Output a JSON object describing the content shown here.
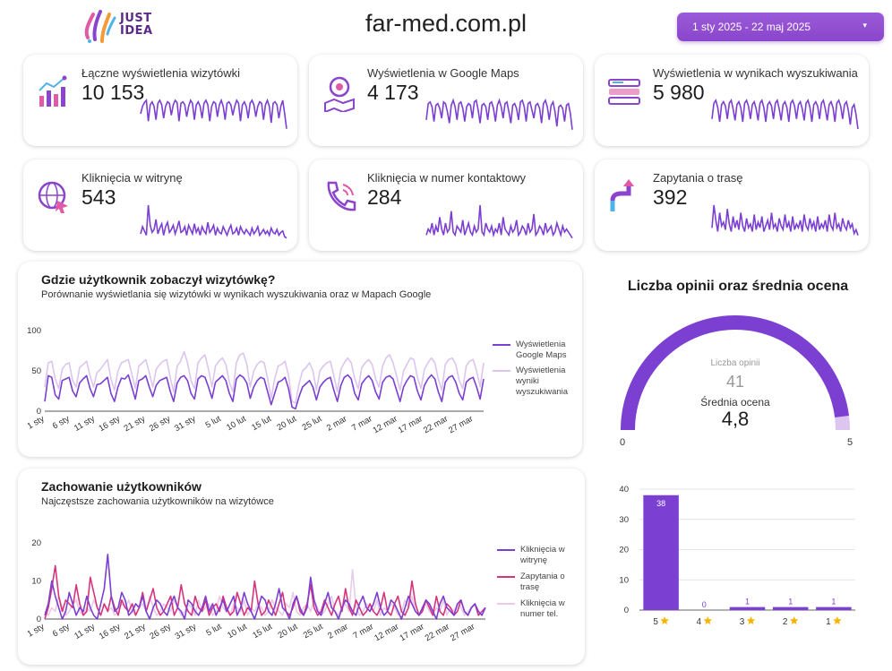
{
  "header": {
    "logo_text_line1": "JUST",
    "logo_text_line2": "IDEA",
    "site_title": "far-med.com.pl",
    "date_range": "1 sty 2025 - 22 maj 2025",
    "date_caret": "▾"
  },
  "kpis": [
    {
      "label": "Łączne wyświetlenia wizytówki",
      "value": "10 153",
      "icon": "bar-chart-icon"
    },
    {
      "label": "Wyświetlenia w Google Maps",
      "value": "4 173",
      "icon": "map-pin-icon"
    },
    {
      "label": "Wyświetlenia w wynikach wyszukiwania",
      "value": "5 980",
      "icon": "search-results-icon"
    },
    {
      "label": "Kliknięcia w witrynę",
      "value": "543",
      "icon": "globe-click-icon"
    },
    {
      "label": "Kliknięcia w numer kontaktowy",
      "value": "284",
      "icon": "phone-icon"
    },
    {
      "label": "Zapytania o trasę",
      "value": "392",
      "icon": "route-arrow-icon"
    }
  ],
  "colors": {
    "primary": "#7b3fd1",
    "light": "#dcc5ee",
    "pink": "#d6357c",
    "pale_pink": "#e7cbe9"
  },
  "chart_data": [
    {
      "type": "line",
      "title": "Gdzie użytkownik zobaczył wizytówkę?",
      "subtitle": "Porównanie wyświetlania się wizytówki w wynikach wyszukiwania oraz w Mapach Google",
      "x_ticks": [
        "1 sty",
        "6 sty",
        "11 sty",
        "16 sty",
        "21 sty",
        "26 sty",
        "31 sty",
        "5 lut",
        "10 lut",
        "15 lut",
        "20 lut",
        "25 lut",
        "2 mar",
        "7 mar",
        "12 mar",
        "17 mar",
        "22 mar",
        "27 mar"
      ],
      "y_ticks": [
        "0",
        "50",
        "100"
      ],
      "ylim": [
        0,
        100
      ],
      "series": [
        {
          "name": "Wyświetlenia Google Maps",
          "color": "#7b3fd1",
          "values": [
            12,
            44,
            42,
            20,
            15,
            38,
            40,
            42,
            25,
            18,
            35,
            40,
            44,
            28,
            18,
            33,
            34,
            38,
            42,
            22,
            12,
            30,
            41,
            40,
            45,
            30,
            15,
            38,
            40,
            44,
            30,
            18,
            32,
            38,
            40,
            42,
            25,
            12,
            35,
            42,
            44,
            38,
            22,
            15,
            40,
            44,
            42,
            30,
            16,
            36,
            40,
            44,
            38,
            22,
            12,
            40,
            45,
            42,
            35,
            16,
            30,
            38,
            42,
            40,
            24,
            8,
            22,
            36,
            38,
            42,
            28,
            5,
            3,
            18,
            30,
            34,
            38,
            30,
            14,
            30,
            36,
            40,
            42,
            26,
            12,
            32,
            42,
            45,
            40,
            22,
            14,
            34,
            40,
            44,
            38,
            24,
            15,
            36,
            42,
            44,
            40,
            26,
            12,
            30,
            38,
            44,
            42,
            25,
            14,
            32,
            40,
            45,
            40,
            24,
            12,
            36,
            42,
            44,
            36,
            22,
            14,
            36,
            40,
            42,
            30,
            15,
            40
          ]
        },
        {
          "name": "Wyświetlenia wyniki wyszukiwania",
          "color": "#dcc5ee",
          "values": [
            30,
            60,
            62,
            40,
            28,
            52,
            58,
            60,
            38,
            30,
            54,
            58,
            62,
            44,
            30,
            48,
            52,
            58,
            64,
            40,
            26,
            50,
            60,
            62,
            64,
            46,
            28,
            56,
            60,
            64,
            48,
            30,
            52,
            58,
            62,
            64,
            42,
            24,
            56,
            62,
            74,
            60,
            38,
            28,
            60,
            66,
            70,
            52,
            30,
            56,
            62,
            66,
            58,
            36,
            24,
            60,
            70,
            72,
            58,
            30,
            50,
            58,
            62,
            60,
            40,
            16,
            40,
            56,
            58,
            62,
            44,
            12,
            10,
            34,
            50,
            54,
            60,
            50,
            26,
            50,
            56,
            60,
            62,
            44,
            24,
            52,
            60,
            66,
            60,
            40,
            28,
            54,
            60,
            64,
            58,
            40,
            30,
            56,
            66,
            70,
            60,
            44,
            26,
            50,
            58,
            66,
            64,
            42,
            28,
            52,
            60,
            66,
            60,
            40,
            26,
            58,
            64,
            66,
            58,
            38,
            28,
            56,
            62,
            64,
            50,
            30,
            60
          ]
        }
      ]
    },
    {
      "type": "gauge",
      "title": "Liczba opinii oraz średnia ocena",
      "count_label": "Liczba opinii",
      "count_value": "41",
      "avg_label": "Średnia ocena",
      "avg_value": "4,8",
      "value": 4.8,
      "min_label": "0",
      "max_label": "5",
      "range": [
        0,
        5
      ]
    },
    {
      "type": "line",
      "title": "Zachowanie użytkowników",
      "subtitle": "Najczęstsze zachowania użytkowników na wizytówce",
      "x_ticks": [
        "1 sty",
        "6 sty",
        "11 sty",
        "16 sty",
        "21 sty",
        "26 sty",
        "31 sty",
        "5 lut",
        "10 lut",
        "15 lut",
        "20 lut",
        "25 lut",
        "2 mar",
        "7 mar",
        "12 mar",
        "17 mar",
        "22 mar",
        "27 mar"
      ],
      "y_ticks": [
        "0",
        "10",
        "20"
      ],
      "ylim": [
        0,
        20
      ],
      "series": [
        {
          "name": "Kliknięcia w witrynę",
          "color": "#7b3fd1",
          "values": [
            1,
            4,
            10,
            6,
            3,
            0,
            2,
            7,
            4,
            1,
            3,
            2,
            6,
            3,
            1,
            0,
            4,
            8,
            17,
            6,
            2,
            3,
            7,
            5,
            1,
            2,
            4,
            3,
            6,
            2,
            0,
            3,
            5,
            4,
            2,
            1,
            4,
            6,
            3,
            2,
            0,
            5,
            4,
            2,
            1,
            3,
            6,
            2,
            4,
            1,
            3,
            5,
            2,
            4,
            6,
            1,
            3,
            7,
            4,
            2,
            0,
            3,
            6,
            5,
            2,
            1,
            4,
            8,
            3,
            2,
            0,
            4,
            6,
            3,
            1,
            3,
            11,
            5,
            2,
            1,
            4,
            7,
            3,
            2,
            0,
            3,
            5,
            4,
            2,
            1,
            4,
            6,
            3,
            2,
            4,
            7,
            3,
            1,
            2,
            5,
            4,
            2,
            0,
            3,
            6,
            4,
            2,
            1,
            3,
            5,
            4,
            2,
            0,
            4,
            6,
            3,
            2,
            1,
            4,
            5,
            2,
            1,
            3,
            4,
            2,
            1,
            3
          ]
        },
        {
          "name": "Zapytania o trasę",
          "color": "#d6357c",
          "values": [
            0,
            3,
            8,
            14,
            6,
            2,
            5,
            4,
            3,
            9,
            4,
            1,
            2,
            11,
            7,
            3,
            1,
            4,
            2,
            6,
            3,
            1,
            5,
            3,
            2,
            4,
            1,
            3,
            7,
            2,
            5,
            8,
            3,
            1,
            2,
            4,
            6,
            1,
            3,
            9,
            4,
            2,
            1,
            6,
            3,
            2,
            5,
            1,
            3,
            4,
            2,
            6,
            3,
            1,
            2,
            7,
            4,
            1,
            3,
            2,
            10,
            4,
            1,
            2,
            5,
            3,
            1,
            4,
            7,
            2,
            1,
            3,
            6,
            2,
            1,
            4,
            9,
            3,
            1,
            2,
            5,
            3,
            1,
            4,
            6,
            2,
            8,
            3,
            1,
            5,
            3,
            1,
            2,
            4,
            2,
            1,
            3,
            7,
            2,
            1,
            4,
            6,
            2,
            1,
            3,
            10,
            4,
            1,
            2,
            5,
            3,
            1,
            6,
            2,
            1,
            4,
            3,
            1,
            2,
            5,
            2,
            1,
            3,
            4,
            1,
            2,
            3
          ]
        },
        {
          "name": "Kliknięcia w numer tel.",
          "color": "#e7cbe9",
          "values": [
            2,
            1,
            3,
            2,
            6,
            3,
            1,
            2,
            4,
            5,
            2,
            1,
            3,
            2,
            5,
            3,
            1,
            4,
            2,
            3,
            1,
            2,
            4,
            3,
            5,
            2,
            1,
            3,
            4,
            2,
            6,
            3,
            1,
            2,
            4,
            3,
            2,
            5,
            3,
            1,
            2,
            4,
            3,
            1,
            5,
            2,
            3,
            4,
            1,
            2,
            6,
            3,
            2,
            1,
            4,
            3,
            2,
            5,
            1,
            3,
            2,
            4,
            3,
            1,
            2,
            5,
            3,
            2,
            1,
            4,
            3,
            7,
            2,
            1,
            3,
            4,
            2,
            5,
            3,
            1,
            2,
            4,
            6,
            2,
            1,
            3,
            4,
            2,
            13,
            3,
            1,
            2,
            4,
            3,
            2,
            5,
            1,
            3,
            2,
            4,
            3,
            1,
            2,
            5,
            3,
            6,
            2,
            1,
            3,
            4,
            2,
            1,
            3,
            2,
            5,
            1,
            3,
            2,
            4,
            3,
            1,
            2,
            3,
            4,
            2,
            1,
            3
          ]
        }
      ]
    },
    {
      "type": "bar",
      "categories": [
        "5",
        "4",
        "3",
        "2",
        "1"
      ],
      "values": [
        38,
        0,
        1,
        1,
        1
      ],
      "y_ticks": [
        "0",
        "10",
        "20",
        "30",
        "40"
      ],
      "ylim": [
        0,
        40
      ],
      "category_icon": "star-icon"
    }
  ],
  "sparklines": [
    [
      30,
      40,
      45,
      48,
      20,
      42,
      46,
      40,
      22,
      44,
      48,
      42,
      24,
      40,
      46,
      44,
      28,
      42,
      48,
      45,
      20,
      44,
      46,
      42,
      26,
      40,
      48,
      44,
      22,
      42,
      46,
      40,
      24,
      44,
      48,
      42,
      20,
      40,
      46,
      44,
      26,
      42,
      48,
      40,
      22,
      44,
      46,
      42,
      28,
      40,
      48,
      44,
      20,
      42,
      46,
      40,
      24,
      44,
      48,
      42,
      26,
      40,
      46,
      44,
      22,
      42,
      48,
      40,
      18,
      44,
      46,
      42,
      24,
      40,
      48,
      30,
      10
    ],
    [
      20,
      40,
      42,
      36,
      18,
      38,
      40,
      34,
      22,
      42,
      40,
      30,
      16,
      38,
      44,
      36,
      20,
      40,
      42,
      34,
      18,
      36,
      40,
      38,
      22,
      42,
      44,
      32,
      16,
      38,
      40,
      36,
      20,
      40,
      42,
      34,
      18,
      38,
      44,
      36,
      22,
      40,
      42,
      30,
      16,
      38,
      40,
      34,
      20,
      42,
      44,
      36,
      18,
      40,
      42,
      32,
      22,
      38,
      40,
      34,
      16,
      40,
      44,
      36,
      20,
      38,
      42,
      30,
      12,
      36,
      38,
      34,
      18,
      38,
      40,
      28,
      8
    ],
    [
      24,
      46,
      50,
      40,
      20,
      44,
      48,
      42,
      24,
      46,
      50,
      38,
      22,
      44,
      48,
      40,
      20,
      46,
      50,
      42,
      24,
      44,
      48,
      38,
      22,
      46,
      50,
      40,
      20,
      44,
      48,
      42,
      24,
      46,
      50,
      38,
      22,
      44,
      48,
      40,
      20,
      46,
      50,
      42,
      24,
      44,
      48,
      38,
      22,
      46,
      50,
      40,
      20,
      44,
      48,
      42,
      24,
      46,
      50,
      38,
      22,
      44,
      48,
      40,
      20,
      46,
      50,
      42,
      24,
      44,
      48,
      36,
      16,
      40,
      44,
      30,
      10
    ],
    [
      10,
      20,
      14,
      8,
      50,
      22,
      12,
      16,
      30,
      10,
      18,
      24,
      8,
      20,
      26,
      12,
      16,
      22,
      10,
      18,
      28,
      12,
      14,
      20,
      8,
      22,
      16,
      10,
      24,
      12,
      18,
      8,
      20,
      14,
      10,
      26,
      12,
      16,
      22,
      8,
      18,
      12,
      10,
      20,
      14,
      8,
      16,
      22,
      10,
      12,
      18,
      8,
      20,
      14,
      10,
      16,
      12,
      8,
      18,
      10,
      14,
      20,
      8,
      12,
      16,
      10,
      14,
      8,
      18,
      12,
      10,
      16,
      8,
      12,
      14,
      6,
      4
    ],
    [
      4,
      8,
      6,
      12,
      4,
      10,
      6,
      16,
      8,
      4,
      12,
      6,
      8,
      20,
      6,
      4,
      10,
      8,
      6,
      14,
      4,
      8,
      12,
      6,
      4,
      10,
      6,
      8,
      24,
      6,
      4,
      12,
      8,
      6,
      10,
      4,
      8,
      6,
      12,
      4,
      16,
      8,
      6,
      4,
      10,
      6,
      8,
      14,
      4,
      6,
      10,
      8,
      4,
      12,
      6,
      8,
      18,
      4,
      6,
      10,
      8,
      4,
      12,
      6,
      8,
      10,
      4,
      6,
      12,
      8,
      4,
      10,
      6,
      8,
      6,
      4,
      2
    ],
    [
      14,
      38,
      22,
      10,
      30,
      16,
      20,
      12,
      34,
      18,
      10,
      26,
      14,
      22,
      12,
      30,
      16,
      10,
      24,
      14,
      18,
      10,
      28,
      12,
      20,
      14,
      26,
      10,
      16,
      22,
      12,
      30,
      14,
      18,
      10,
      24,
      16,
      12,
      28,
      14,
      20,
      10,
      26,
      12,
      18,
      14,
      22,
      10,
      28,
      16,
      12,
      24,
      14,
      20,
      10,
      26,
      12,
      18,
      14,
      22,
      10,
      28,
      16,
      12,
      30,
      14,
      18,
      10,
      24,
      16,
      12,
      22,
      14,
      18,
      8,
      12,
      6
    ]
  ]
}
